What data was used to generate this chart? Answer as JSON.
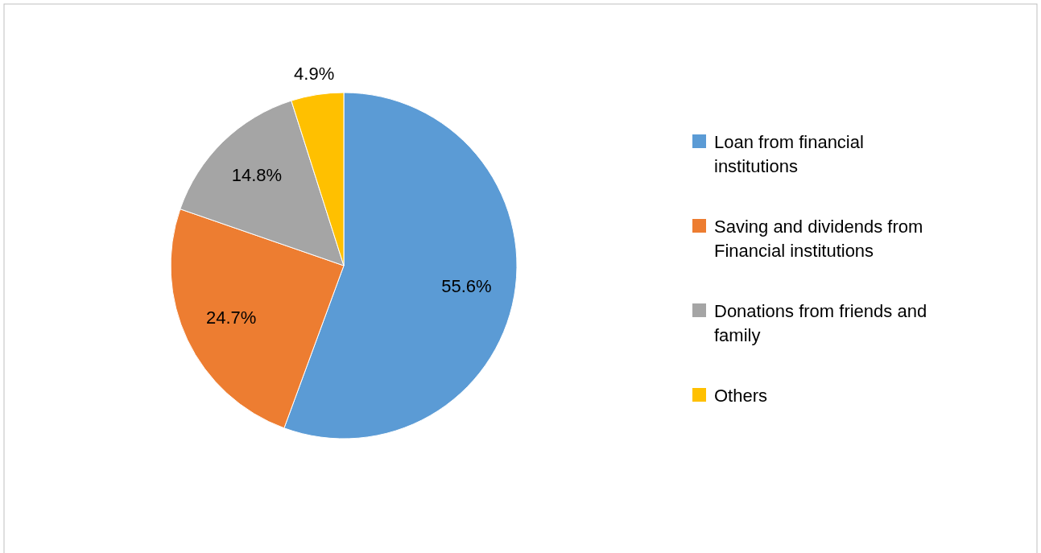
{
  "chart_data": {
    "type": "pie",
    "categories": [
      "Loan from financial institutions",
      "Saving and dividends from Financial institutions",
      "Donations from friends and family",
      "Others"
    ],
    "values": [
      55.6,
      24.7,
      14.8,
      4.9
    ],
    "colors": [
      "#5b9bd5",
      "#ed7d31",
      "#a5a5a5",
      "#ffc000"
    ],
    "value_labels": [
      "55.6%",
      "24.7%",
      "14.8%",
      "4.9%"
    ],
    "legend": "right"
  }
}
